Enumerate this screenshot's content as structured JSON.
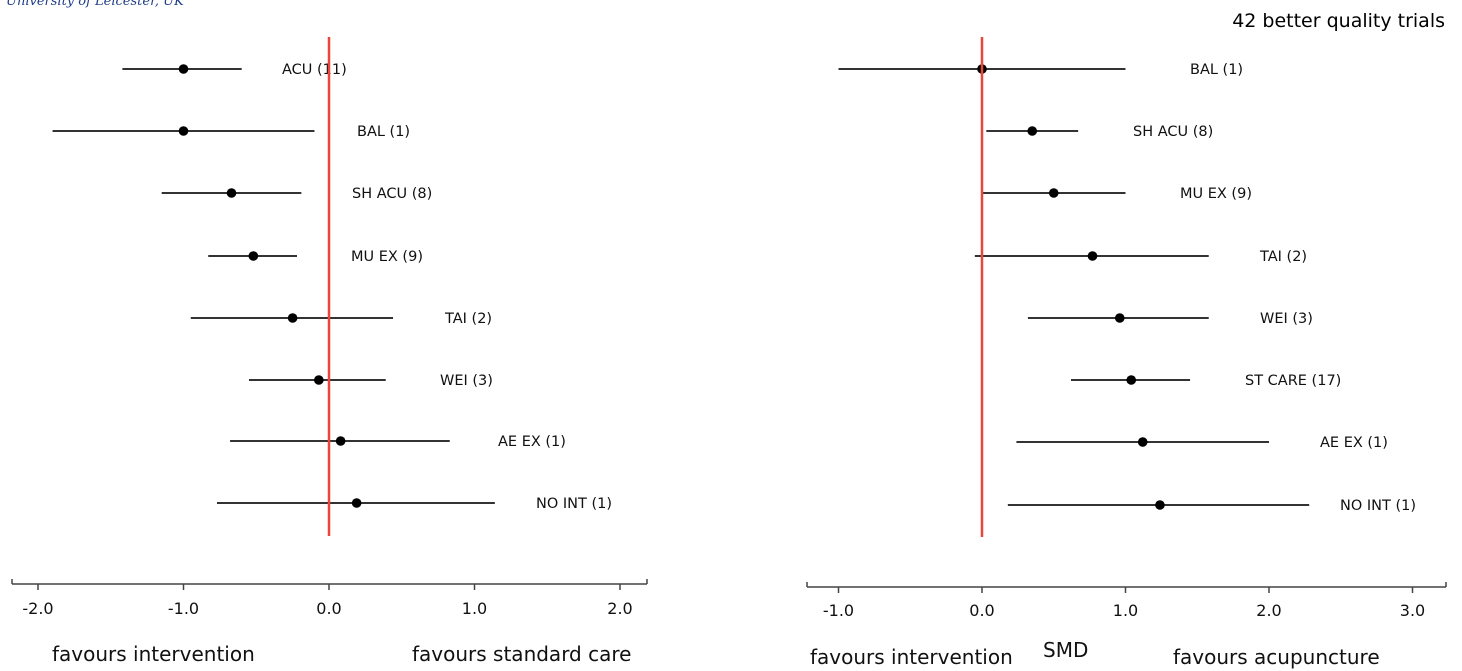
{
  "header": {
    "affiliation": "University of Leicester, UK",
    "note": "42 better quality trials"
  },
  "colors": {
    "reference_line": "#e8473a",
    "interval": "#333333",
    "point": "#000000",
    "axis": "#444444",
    "text": "#111111"
  },
  "chart_data": [
    {
      "type": "forest",
      "xlabel": "",
      "xlim": [
        -2.2,
        2.2
      ],
      "x_ticks": [
        -2.0,
        -1.0,
        0.0,
        1.0,
        2.0
      ],
      "x_tick_labels": [
        "-2.0",
        "-1.0",
        "0.0",
        "1.0",
        "2.0"
      ],
      "reference_x": 0,
      "direction_left": "favours intervention",
      "direction_right": "favours standard care",
      "rows": [
        {
          "label": "ACU (11)",
          "estimate": -1.0,
          "lower": -1.42,
          "upper": -0.6
        },
        {
          "label": "BAL (1)",
          "estimate": -1.0,
          "lower": -1.9,
          "upper": -0.1
        },
        {
          "label": "SH ACU (8)",
          "estimate": -0.67,
          "lower": -1.15,
          "upper": -0.19
        },
        {
          "label": "MU EX (9)",
          "estimate": -0.52,
          "lower": -0.83,
          "upper": -0.22
        },
        {
          "label": "TAI (2)",
          "estimate": -0.25,
          "lower": -0.95,
          "upper": 0.44
        },
        {
          "label": "WEI (3)",
          "estimate": -0.07,
          "lower": -0.55,
          "upper": 0.39
        },
        {
          "label": "AE EX (1)",
          "estimate": 0.08,
          "lower": -0.68,
          "upper": 0.83
        },
        {
          "label": "NO INT (1)",
          "estimate": 0.19,
          "lower": -0.77,
          "upper": 1.14
        }
      ]
    },
    {
      "type": "forest",
      "xlabel": "SMD",
      "xlim": [
        -1.25,
        3.1
      ],
      "x_ticks": [
        -1.0,
        0.0,
        1.0,
        2.0,
        3.0
      ],
      "x_tick_labels": [
        "-1.0",
        "0.0",
        "1.0",
        "2.0",
        "3.0"
      ],
      "reference_x": 0,
      "direction_left": "favours intervention",
      "direction_right": "favours acupuncture",
      "rows": [
        {
          "label": "BAL (1)",
          "estimate": 0.0,
          "lower": -1.0,
          "upper": 1.0
        },
        {
          "label": "SH ACU (8)",
          "estimate": 0.35,
          "lower": 0.03,
          "upper": 0.67
        },
        {
          "label": "MU EX (9)",
          "estimate": 0.5,
          "lower": 0.0,
          "upper": 1.0
        },
        {
          "label": "TAI (2)",
          "estimate": 0.77,
          "lower": -0.05,
          "upper": 1.58
        },
        {
          "label": "WEI (3)",
          "estimate": 0.96,
          "lower": 0.32,
          "upper": 1.58
        },
        {
          "label": "ST CARE (17)",
          "estimate": 1.04,
          "lower": 0.62,
          "upper": 1.45
        },
        {
          "label": "AE EX (1)",
          "estimate": 1.12,
          "lower": 0.24,
          "upper": 2.0
        },
        {
          "label": "NO INT (1)",
          "estimate": 1.24,
          "lower": 0.18,
          "upper": 2.28
        }
      ]
    }
  ]
}
